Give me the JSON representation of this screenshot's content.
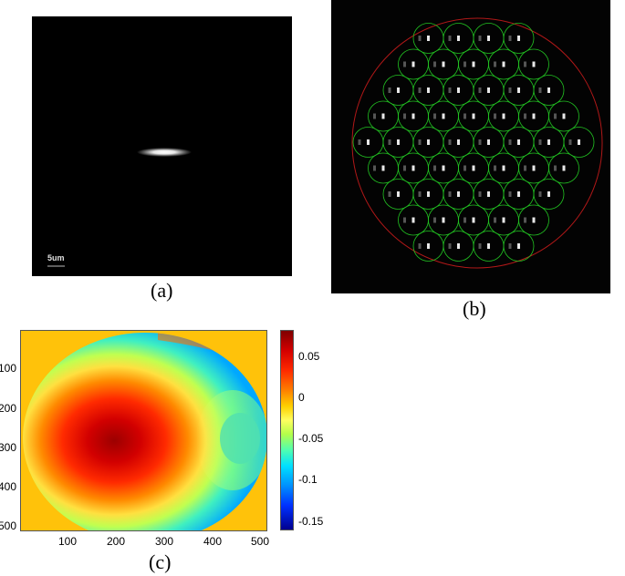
{
  "panel_a": {
    "scale_bar_label": "5um",
    "caption": "(a)"
  },
  "panel_b": {
    "caption": "(b)",
    "circle_color": "#22c322",
    "outer_circle_color": "#b01818"
  },
  "panel_c": {
    "caption": "(c)",
    "x_ticks": [
      "100",
      "200",
      "300",
      "400",
      "500"
    ],
    "y_ticks": [
      "100",
      "200",
      "300",
      "400",
      "500"
    ],
    "colorbar_ticks": [
      "0.05",
      "0",
      "-0.05",
      "-0.1",
      "-0.15"
    ],
    "background_color": "#ffc20a"
  }
}
